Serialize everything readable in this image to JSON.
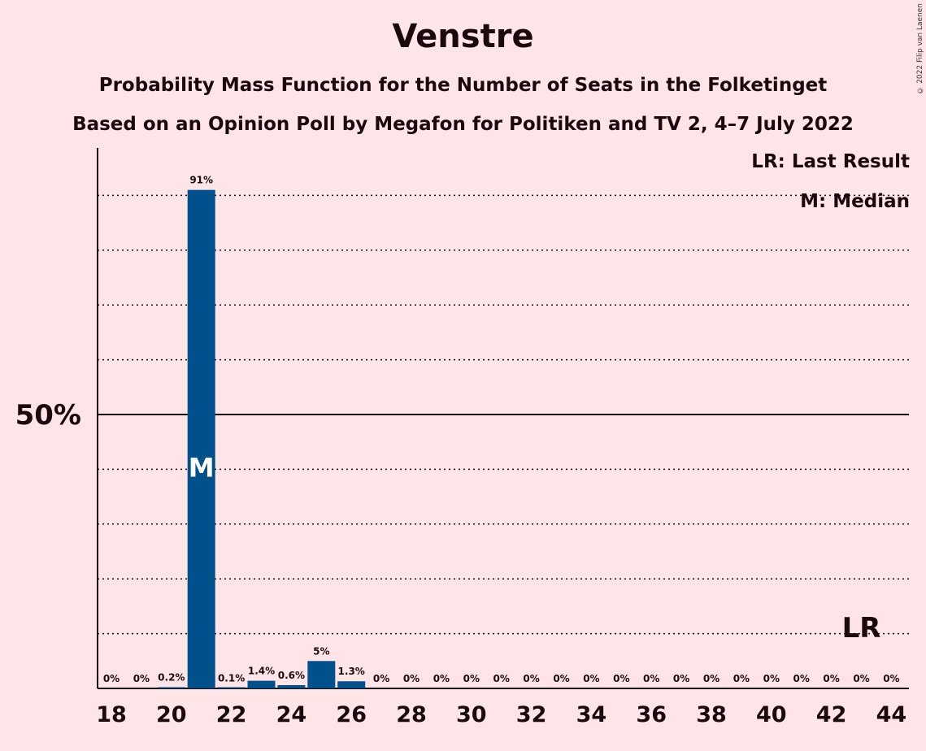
{
  "title": "Venstre",
  "subtitle": "Probability Mass Function for the Number of Seats in the Folketinget",
  "subtitle2": "Based on an Opinion Poll by Megafon for Politiken and TV 2, 4–7 July 2022",
  "copyright": "© 2022 Filip van Laenen",
  "legend": {
    "last_result": "LR: Last Result",
    "median": "M: Median"
  },
  "colors": {
    "background": "#ffe4e8",
    "bar": "#00508c",
    "text": "#1a0a0e"
  },
  "chart_data": {
    "type": "bar",
    "x": [
      18,
      19,
      20,
      21,
      22,
      23,
      24,
      25,
      26,
      27,
      28,
      29,
      30,
      31,
      32,
      33,
      34,
      35,
      36,
      37,
      38,
      39,
      40,
      41,
      42,
      43,
      44
    ],
    "values": [
      0,
      0,
      0.2,
      91,
      0.1,
      1.4,
      0.6,
      5,
      1.3,
      0,
      0,
      0,
      0,
      0,
      0,
      0,
      0,
      0,
      0,
      0,
      0,
      0,
      0,
      0,
      0,
      0,
      0
    ],
    "value_labels": [
      "0%",
      "0%",
      "0.2%",
      "91%",
      "0.1%",
      "1.4%",
      "0.6%",
      "5%",
      "1.3%",
      "0%",
      "0%",
      "0%",
      "0%",
      "0%",
      "0%",
      "0%",
      "0%",
      "0%",
      "0%",
      "0%",
      "0%",
      "0%",
      "0%",
      "0%",
      "0%",
      "0%",
      "0%"
    ],
    "x_tick_labels": [
      "18",
      "20",
      "22",
      "24",
      "26",
      "28",
      "30",
      "32",
      "34",
      "36",
      "38",
      "40",
      "42",
      "44"
    ],
    "y_tick_label": "50%",
    "ylim": [
      0,
      100
    ],
    "median": 21,
    "median_label": "M",
    "last_result": 43,
    "last_result_label": "LR",
    "gridlines_dotted": true
  }
}
